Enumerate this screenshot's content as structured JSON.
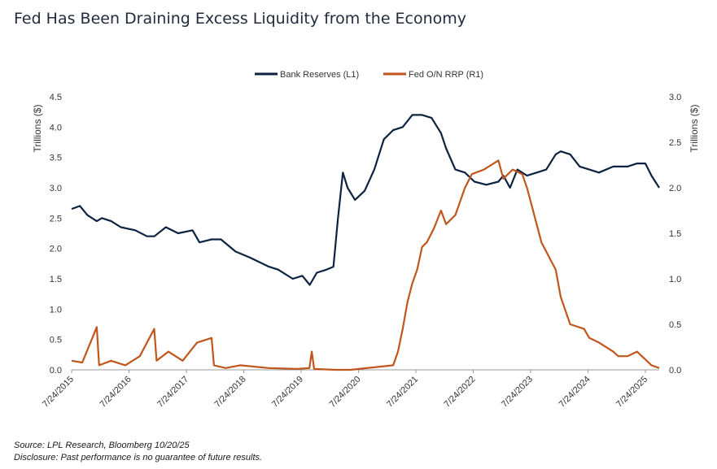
{
  "title": "Fed Has Been Draining Excess Liquidity from the Economy",
  "footer": {
    "source": "Source: LPL Research, Bloomberg 10/20/25",
    "disclosure": "Disclosure: Past performance is no guarantee of future results."
  },
  "colors": {
    "reserves": "#0b2340",
    "rrp": "#c0561c",
    "axis": "#555555"
  },
  "chart_data": {
    "type": "line",
    "grid": false,
    "legend_placement": "top-center",
    "y_left": {
      "label": "Trillions ($)",
      "lim": [
        0,
        4.5
      ],
      "ticks": [
        "0.0",
        "0.5",
        "1.0",
        "1.5",
        "2.0",
        "2.5",
        "3.0",
        "3.5",
        "4.0",
        "4.5"
      ]
    },
    "y_right": {
      "label": "Trillions ($)",
      "lim": [
        0,
        3
      ],
      "ticks": [
        "0.0",
        "0.5",
        "1.0",
        "1.5",
        "2.0",
        "2.5",
        "3.0"
      ]
    },
    "x_ticks": [
      "7/24/2015",
      "7/24/2016",
      "7/24/2017",
      "7/24/2018",
      "7/24/2019",
      "7/24/2020",
      "7/24/2021",
      "7/24/2022",
      "7/24/2023",
      "7/24/2024",
      "7/24/2025"
    ],
    "x_range": [
      "2015-07-24",
      "2025-10-20"
    ],
    "series": [
      {
        "name": "Bank Reserves (L1)",
        "axis": "left",
        "x": [
          "2015-07-24",
          "2015-09-15",
          "2015-11-01",
          "2015-12-31",
          "2016-02-01",
          "2016-04-01",
          "2016-06-01",
          "2016-09-01",
          "2016-11-15",
          "2017-01-01",
          "2017-03-15",
          "2017-06-01",
          "2017-09-01",
          "2017-10-15",
          "2017-12-31",
          "2018-03-01",
          "2018-06-01",
          "2018-09-01",
          "2018-12-31",
          "2019-03-01",
          "2019-06-01",
          "2019-08-01",
          "2019-09-17",
          "2019-11-01",
          "2020-01-01",
          "2020-02-15",
          "2020-03-15",
          "2020-04-15",
          "2020-05-15",
          "2020-07-01",
          "2020-09-01",
          "2020-11-01",
          "2021-01-01",
          "2021-03-01",
          "2021-05-01",
          "2021-07-01",
          "2021-09-01",
          "2021-11-01",
          "2021-12-31",
          "2022-02-01",
          "2022-04-01",
          "2022-06-01",
          "2022-08-01",
          "2022-10-15",
          "2022-12-31",
          "2023-02-01",
          "2023-03-15",
          "2023-05-01",
          "2023-07-01",
          "2023-09-01",
          "2023-11-01",
          "2023-12-31",
          "2024-02-01",
          "2024-04-01",
          "2024-06-01",
          "2024-08-01",
          "2024-10-01",
          "2024-12-31",
          "2025-02-01",
          "2025-04-01",
          "2025-06-01",
          "2025-07-24",
          "2025-09-01",
          "2025-10-20"
        ],
        "values": [
          2.65,
          2.7,
          2.55,
          2.45,
          2.5,
          2.45,
          2.35,
          2.3,
          2.2,
          2.2,
          2.35,
          2.25,
          2.3,
          2.1,
          2.15,
          2.15,
          1.95,
          1.85,
          1.7,
          1.65,
          1.5,
          1.55,
          1.4,
          1.6,
          1.65,
          1.7,
          2.5,
          3.25,
          3.0,
          2.8,
          2.95,
          3.3,
          3.8,
          3.95,
          4.0,
          4.2,
          4.2,
          4.15,
          3.9,
          3.65,
          3.3,
          3.25,
          3.1,
          3.05,
          3.1,
          3.2,
          3.0,
          3.3,
          3.2,
          3.25,
          3.3,
          3.55,
          3.6,
          3.55,
          3.35,
          3.3,
          3.25,
          3.35,
          3.35,
          3.35,
          3.4,
          3.4,
          3.2,
          3.0
        ]
      },
      {
        "name": "Fed O/N RRP  (R1)",
        "axis": "right",
        "x": [
          "2015-07-24",
          "2015-09-30",
          "2015-12-31",
          "2016-01-15",
          "2016-03-31",
          "2016-06-30",
          "2016-09-30",
          "2016-12-31",
          "2017-01-15",
          "2017-03-31",
          "2017-06-30",
          "2017-09-30",
          "2017-12-31",
          "2018-01-15",
          "2018-03-31",
          "2018-06-30",
          "2018-12-31",
          "2019-06-30",
          "2019-09-15",
          "2019-09-30",
          "2019-10-15",
          "2020-03-01",
          "2020-06-01",
          "2021-03-01",
          "2021-04-01",
          "2021-05-01",
          "2021-06-01",
          "2021-07-01",
          "2021-08-01",
          "2021-09-01",
          "2021-10-01",
          "2021-11-15",
          "2021-12-31",
          "2022-02-01",
          "2022-04-01",
          "2022-06-01",
          "2022-07-15",
          "2022-09-30",
          "2022-12-31",
          "2023-02-01",
          "2023-04-01",
          "2023-06-01",
          "2023-07-01",
          "2023-08-01",
          "2023-10-01",
          "2023-12-31",
          "2024-02-01",
          "2024-04-01",
          "2024-06-28",
          "2024-08-01",
          "2024-10-01",
          "2024-12-31",
          "2025-02-01",
          "2025-04-01",
          "2025-06-01",
          "2025-07-01",
          "2025-08-01",
          "2025-09-01",
          "2025-10-20"
        ],
        "values": [
          0.1,
          0.08,
          0.47,
          0.05,
          0.1,
          0.05,
          0.15,
          0.45,
          0.1,
          0.2,
          0.1,
          0.3,
          0.35,
          0.05,
          0.02,
          0.05,
          0.02,
          0.01,
          0.02,
          0.2,
          0.01,
          0.0,
          0.0,
          0.05,
          0.2,
          0.45,
          0.75,
          0.95,
          1.1,
          1.35,
          1.4,
          1.55,
          1.75,
          1.6,
          1.7,
          2.0,
          2.15,
          2.2,
          2.3,
          2.1,
          2.2,
          2.15,
          2.0,
          1.8,
          1.4,
          1.1,
          0.8,
          0.5,
          0.45,
          0.35,
          0.3,
          0.2,
          0.15,
          0.15,
          0.2,
          0.15,
          0.1,
          0.05,
          0.02
        ]
      }
    ]
  }
}
